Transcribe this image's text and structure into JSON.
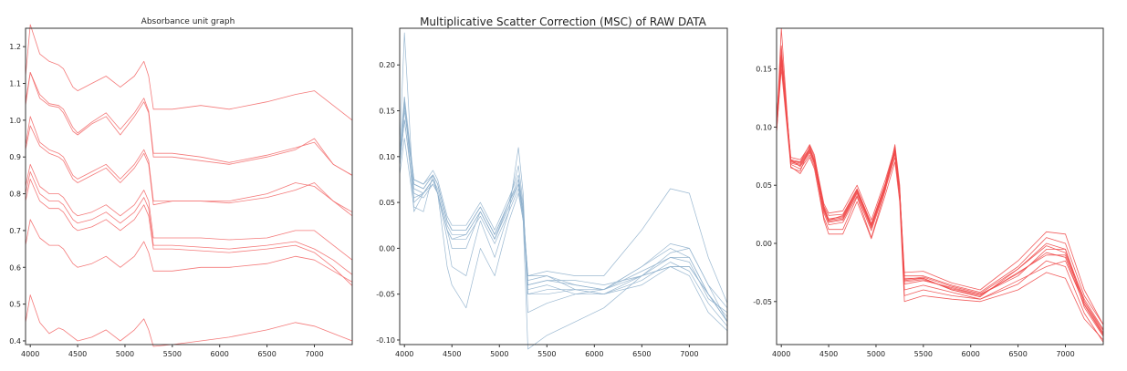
{
  "chart_data": [
    {
      "type": "line",
      "title": "Absorbance unit graph",
      "xlabel": "",
      "ylabel": "",
      "xlim": [
        3950,
        7400
      ],
      "ylim": [
        0.39,
        1.25
      ],
      "grid": false,
      "xticks": [
        "4000",
        "4500",
        "5000",
        "5500",
        "6000",
        "6500",
        "7000"
      ],
      "yticks": [
        "0.4",
        "0.5",
        "0.6",
        "0.7",
        "0.8",
        "0.9",
        "1.0",
        "1.1",
        "1.2"
      ],
      "color": "#f36b6b",
      "x": [
        3950,
        4000,
        4100,
        4200,
        4300,
        4350,
        4450,
        4500,
        4650,
        4800,
        4950,
        5100,
        5200,
        5250,
        5300,
        5500,
        5800,
        6100,
        6500,
        6800,
        7000,
        7200,
        7400
      ],
      "series": [
        {
          "values": [
            1.12,
            1.26,
            1.18,
            1.16,
            1.15,
            1.14,
            1.09,
            1.08,
            1.1,
            1.12,
            1.09,
            1.12,
            1.16,
            1.12,
            1.03,
            1.03,
            1.04,
            1.03,
            1.05,
            1.07,
            1.08,
            1.04,
            1.0
          ]
        },
        {
          "values": [
            1.04,
            1.13,
            1.06,
            1.04,
            1.035,
            1.02,
            0.97,
            0.96,
            0.99,
            1.01,
            0.96,
            1.01,
            1.05,
            1.02,
            0.9,
            0.9,
            0.89,
            0.88,
            0.9,
            0.92,
            0.95,
            0.88,
            0.85
          ]
        },
        {
          "values": [
            1.05,
            1.13,
            1.07,
            1.045,
            1.04,
            1.03,
            0.98,
            0.965,
            0.995,
            1.02,
            0.975,
            1.02,
            1.06,
            1.025,
            0.91,
            0.91,
            0.9,
            0.885,
            0.905,
            0.925,
            0.94,
            0.88,
            0.85
          ]
        },
        {
          "values": [
            0.93,
            1.01,
            0.94,
            0.92,
            0.91,
            0.9,
            0.85,
            0.84,
            0.86,
            0.88,
            0.84,
            0.88,
            0.92,
            0.89,
            0.78,
            0.78,
            0.78,
            0.775,
            0.79,
            0.81,
            0.83,
            0.78,
            0.75
          ]
        },
        {
          "values": [
            0.92,
            0.985,
            0.93,
            0.91,
            0.9,
            0.89,
            0.84,
            0.83,
            0.85,
            0.87,
            0.83,
            0.87,
            0.91,
            0.88,
            0.77,
            0.78,
            0.78,
            0.78,
            0.8,
            0.83,
            0.82,
            0.78,
            0.74
          ]
        },
        {
          "values": [
            0.82,
            0.88,
            0.82,
            0.8,
            0.8,
            0.79,
            0.75,
            0.74,
            0.75,
            0.77,
            0.74,
            0.77,
            0.81,
            0.78,
            0.68,
            0.68,
            0.68,
            0.675,
            0.68,
            0.7,
            0.7,
            0.66,
            0.62
          ]
        },
        {
          "values": [
            0.8,
            0.86,
            0.8,
            0.78,
            0.78,
            0.77,
            0.73,
            0.72,
            0.73,
            0.75,
            0.72,
            0.75,
            0.79,
            0.76,
            0.66,
            0.66,
            0.655,
            0.65,
            0.66,
            0.67,
            0.65,
            0.62,
            0.58
          ]
        },
        {
          "values": [
            0.78,
            0.84,
            0.78,
            0.76,
            0.76,
            0.75,
            0.71,
            0.7,
            0.71,
            0.73,
            0.7,
            0.73,
            0.77,
            0.74,
            0.65,
            0.65,
            0.645,
            0.64,
            0.65,
            0.66,
            0.64,
            0.6,
            0.55
          ]
        },
        {
          "values": [
            0.66,
            0.73,
            0.68,
            0.66,
            0.66,
            0.65,
            0.61,
            0.6,
            0.61,
            0.63,
            0.6,
            0.63,
            0.67,
            0.64,
            0.59,
            0.59,
            0.6,
            0.6,
            0.61,
            0.63,
            0.62,
            0.59,
            0.56
          ]
        },
        {
          "values": [
            0.45,
            0.525,
            0.45,
            0.42,
            0.435,
            0.43,
            0.41,
            0.4,
            0.41,
            0.43,
            0.4,
            0.43,
            0.46,
            0.43,
            0.385,
            0.39,
            0.4,
            0.41,
            0.43,
            0.45,
            0.44,
            0.42,
            0.4
          ]
        }
      ]
    },
    {
      "type": "line",
      "title": "Multiplicative Scatter Correction (MSC) of RAW DATA",
      "xlabel": "",
      "ylabel": "",
      "xlim": [
        3950,
        7400
      ],
      "ylim": [
        -0.105,
        0.24
      ],
      "grid": false,
      "xticks": [
        "4000",
        "4500",
        "5000",
        "5500",
        "6000",
        "6500",
        "7000"
      ],
      "yticks": [
        "-0.10",
        "-0.05",
        "0.00",
        "0.05",
        "0.10",
        "0.15",
        "0.20"
      ],
      "color": "#8fb0cc",
      "x": [
        3950,
        4000,
        4100,
        4200,
        4300,
        4350,
        4450,
        4500,
        4650,
        4800,
        4950,
        5100,
        5200,
        5250,
        5300,
        5500,
        5800,
        6100,
        6500,
        6800,
        7000,
        7200,
        7400
      ],
      "series": [
        {
          "values": [
            0.1,
            0.16,
            0.07,
            0.065,
            0.08,
            0.07,
            0.03,
            0.02,
            0.02,
            0.045,
            0.015,
            0.05,
            0.075,
            0.04,
            -0.04,
            -0.035,
            -0.04,
            -0.045,
            -0.03,
            -0.02,
            -0.02,
            -0.05,
            -0.075
          ]
        },
        {
          "values": [
            0.1,
            0.155,
            0.075,
            0.07,
            0.085,
            0.075,
            0.035,
            0.025,
            0.025,
            0.05,
            0.02,
            0.055,
            0.08,
            0.045,
            -0.035,
            -0.03,
            -0.045,
            -0.045,
            -0.025,
            -0.01,
            -0.015,
            -0.055,
            -0.07
          ]
        },
        {
          "values": [
            0.095,
            0.15,
            0.07,
            0.065,
            0.08,
            0.07,
            0.03,
            0.02,
            0.02,
            0.045,
            0.015,
            0.05,
            0.07,
            0.04,
            -0.04,
            -0.035,
            -0.035,
            -0.04,
            -0.03,
            -0.005,
            0.0,
            -0.04,
            -0.08
          ]
        },
        {
          "values": [
            0.1,
            0.16,
            0.065,
            0.06,
            0.075,
            0.065,
            0.025,
            0.015,
            0.015,
            0.04,
            0.01,
            0.045,
            0.07,
            0.035,
            -0.045,
            -0.04,
            -0.05,
            -0.05,
            -0.035,
            -0.015,
            -0.025,
            -0.06,
            -0.085
          ]
        },
        {
          "values": [
            0.105,
            0.165,
            0.075,
            0.07,
            0.08,
            0.07,
            0.03,
            0.02,
            0.02,
            0.045,
            0.015,
            0.05,
            0.075,
            0.04,
            -0.03,
            -0.03,
            -0.04,
            -0.045,
            -0.02,
            0.005,
            0.0,
            -0.04,
            -0.065
          ]
        },
        {
          "values": [
            0.09,
            0.14,
            0.06,
            0.055,
            0.07,
            0.06,
            0.02,
            0.01,
            0.01,
            0.035,
            0.005,
            0.04,
            0.065,
            0.03,
            -0.05,
            -0.045,
            -0.045,
            -0.05,
            -0.04,
            -0.02,
            -0.02,
            -0.05,
            -0.08
          ]
        },
        {
          "values": [
            0.11,
            0.235,
            0.05,
            0.06,
            0.075,
            0.06,
            0.01,
            -0.02,
            -0.03,
            0.03,
            -0.01,
            0.04,
            0.11,
            0.06,
            -0.07,
            -0.06,
            -0.05,
            -0.045,
            -0.02,
            0.0,
            -0.01,
            -0.05,
            -0.08
          ]
        },
        {
          "values": [
            0.09,
            0.165,
            0.04,
            0.06,
            0.07,
            0.06,
            0.02,
            0.0,
            0.0,
            0.04,
            0.01,
            0.05,
            0.09,
            0.05,
            -0.05,
            -0.05,
            -0.045,
            -0.05,
            -0.03,
            -0.01,
            -0.01,
            -0.05,
            -0.08
          ]
        },
        {
          "values": [
            0.08,
            0.12,
            0.045,
            0.04,
            0.08,
            0.06,
            -0.02,
            -0.04,
            -0.065,
            0.0,
            -0.03,
            0.03,
            0.06,
            0.03,
            -0.11,
            -0.095,
            -0.08,
            -0.065,
            -0.03,
            -0.02,
            -0.03,
            -0.07,
            -0.09
          ]
        },
        {
          "values": [
            0.09,
            0.14,
            0.055,
            0.06,
            0.075,
            0.06,
            0.02,
            0.01,
            0.015,
            0.04,
            0.01,
            0.045,
            0.07,
            0.035,
            -0.03,
            -0.025,
            -0.03,
            -0.03,
            0.02,
            0.065,
            0.06,
            -0.01,
            -0.06
          ]
        }
      ]
    },
    {
      "type": "line",
      "title": "",
      "xlabel": "",
      "ylabel": "",
      "xlim": [
        3950,
        7400
      ],
      "ylim": [
        -0.087,
        0.185
      ],
      "grid": false,
      "xticks": [
        "4000",
        "4500",
        "5000",
        "5500",
        "6000",
        "6500",
        "7000"
      ],
      "yticks": [
        "-0.05",
        "0.00",
        "0.05",
        "0.10",
        "0.15"
      ],
      "color": "#f04a4a",
      "x": [
        3950,
        4000,
        4100,
        4200,
        4300,
        4350,
        4450,
        4500,
        4650,
        4800,
        4950,
        5100,
        5200,
        5250,
        5300,
        5500,
        5800,
        6100,
        6500,
        6800,
        7000,
        7200,
        7400
      ],
      "series": [
        {
          "values": [
            0.1,
            0.16,
            0.07,
            0.068,
            0.08,
            0.07,
            0.03,
            0.02,
            0.022,
            0.045,
            0.015,
            0.05,
            0.08,
            0.045,
            -0.03,
            -0.03,
            -0.04,
            -0.045,
            -0.025,
            -0.01,
            -0.01,
            -0.05,
            -0.075
          ]
        },
        {
          "values": [
            0.095,
            0.155,
            0.072,
            0.066,
            0.078,
            0.069,
            0.028,
            0.018,
            0.02,
            0.043,
            0.013,
            0.048,
            0.077,
            0.042,
            -0.035,
            -0.032,
            -0.038,
            -0.044,
            -0.028,
            -0.005,
            -0.005,
            -0.055,
            -0.08
          ]
        },
        {
          "values": [
            0.105,
            0.165,
            0.07,
            0.07,
            0.082,
            0.072,
            0.032,
            0.024,
            0.025,
            0.047,
            0.017,
            0.052,
            0.083,
            0.047,
            -0.028,
            -0.028,
            -0.036,
            -0.042,
            -0.02,
            0.005,
            0.0,
            -0.045,
            -0.07
          ]
        },
        {
          "values": [
            0.1,
            0.185,
            0.065,
            0.062,
            0.083,
            0.07,
            0.022,
            0.012,
            0.012,
            0.04,
            0.005,
            0.046,
            0.085,
            0.05,
            -0.045,
            -0.04,
            -0.045,
            -0.048,
            -0.035,
            -0.015,
            -0.02,
            -0.06,
            -0.085
          ]
        },
        {
          "values": [
            0.098,
            0.158,
            0.068,
            0.064,
            0.076,
            0.066,
            0.026,
            0.016,
            0.018,
            0.041,
            0.011,
            0.047,
            0.074,
            0.04,
            -0.04,
            -0.036,
            -0.042,
            -0.048,
            -0.032,
            -0.02,
            -0.015,
            -0.052,
            -0.078
          ]
        },
        {
          "values": [
            0.102,
            0.162,
            0.074,
            0.072,
            0.084,
            0.074,
            0.034,
            0.026,
            0.028,
            0.05,
            0.02,
            0.055,
            0.082,
            0.046,
            -0.025,
            -0.024,
            -0.034,
            -0.04,
            -0.015,
            0.01,
            0.008,
            -0.04,
            -0.07
          ]
        },
        {
          "values": [
            0.096,
            0.15,
            0.066,
            0.06,
            0.074,
            0.064,
            0.02,
            0.008,
            0.008,
            0.036,
            0.004,
            0.042,
            0.07,
            0.036,
            -0.05,
            -0.045,
            -0.048,
            -0.05,
            -0.04,
            -0.025,
            -0.03,
            -0.065,
            -0.083
          ]
        },
        {
          "values": [
            0.104,
            0.17,
            0.072,
            0.07,
            0.085,
            0.076,
            0.03,
            0.02,
            0.024,
            0.046,
            0.016,
            0.051,
            0.081,
            0.044,
            -0.032,
            -0.03,
            -0.04,
            -0.046,
            -0.022,
            0.0,
            -0.005,
            -0.05,
            -0.077
          ]
        },
        {
          "values": [
            0.099,
            0.157,
            0.069,
            0.067,
            0.079,
            0.068,
            0.029,
            0.019,
            0.021,
            0.044,
            0.014,
            0.049,
            0.078,
            0.043,
            -0.033,
            -0.031,
            -0.039,
            -0.044,
            -0.026,
            -0.008,
            -0.012,
            -0.053,
            -0.079
          ]
        },
        {
          "values": [
            0.101,
            0.161,
            0.071,
            0.069,
            0.081,
            0.071,
            0.031,
            0.021,
            0.023,
            0.046,
            0.016,
            0.051,
            0.079,
            0.044,
            -0.031,
            -0.029,
            -0.037,
            -0.043,
            -0.022,
            -0.002,
            -0.008,
            -0.048,
            -0.074
          ]
        }
      ]
    }
  ]
}
